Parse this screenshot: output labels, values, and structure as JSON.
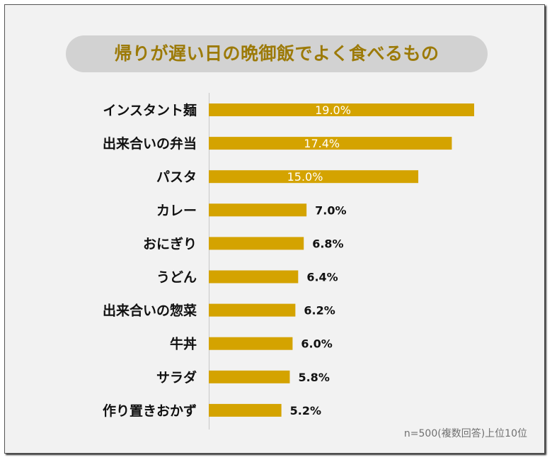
{
  "chart_data": {
    "type": "bar",
    "orientation": "horizontal",
    "title": "帰りが遅い日の晩御飯でよく食べるもの",
    "categories": [
      "インスタント麺",
      "出来合いの弁当",
      "パスタ",
      "カレー",
      "おにぎり",
      "うどん",
      "出来合いの惣菜",
      "牛丼",
      "サラダ",
      "作り置きおかず"
    ],
    "values": [
      19.0,
      17.4,
      15.0,
      7.0,
      6.8,
      6.4,
      6.2,
      6.0,
      5.8,
      5.2
    ],
    "value_labels": [
      "19.0%",
      "17.4%",
      "15.0%",
      "7.0%",
      "6.8%",
      "6.4%",
      "6.2%",
      "6.0%",
      "5.8%",
      "5.2%"
    ],
    "unit": "%",
    "grid": false,
    "legend": "none",
    "bar_color": "#d4a300",
    "title_color": "#9c7a08",
    "note": "n=500(複数回答)上位10位"
  }
}
